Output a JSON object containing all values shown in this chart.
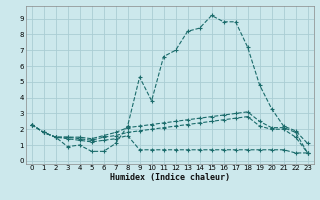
{
  "xlabel": "Humidex (Indice chaleur)",
  "ylabel": "",
  "bg_color": "#cce8ec",
  "grid_color": "#aacdd4",
  "line_color": "#1a6b6b",
  "xlim": [
    -0.5,
    23.5
  ],
  "ylim": [
    -0.2,
    9.8
  ],
  "xticks": [
    0,
    1,
    2,
    3,
    4,
    5,
    6,
    7,
    8,
    9,
    10,
    11,
    12,
    13,
    14,
    15,
    16,
    17,
    18,
    19,
    20,
    21,
    22,
    23
  ],
  "yticks": [
    0,
    1,
    2,
    3,
    4,
    5,
    6,
    7,
    8,
    9
  ],
  "series": [
    {
      "x": [
        0,
        1,
        2,
        3,
        4,
        5,
        6,
        7,
        8,
        9,
        10,
        11,
        12,
        13,
        14,
        15,
        16,
        17,
        18,
        19,
        20,
        21,
        22,
        23
      ],
      "y": [
        2.3,
        1.8,
        1.5,
        0.9,
        1.0,
        0.6,
        0.6,
        1.1,
        2.2,
        5.3,
        3.8,
        6.6,
        7.0,
        8.2,
        8.4,
        9.2,
        8.8,
        8.8,
        7.2,
        4.8,
        3.3,
        2.2,
        1.9,
        1.1
      ]
    },
    {
      "x": [
        0,
        1,
        2,
        3,
        4,
        5,
        6,
        7,
        8,
        9,
        10,
        11,
        12,
        13,
        14,
        15,
        16,
        17,
        18,
        19,
        20,
        21,
        22,
        23
      ],
      "y": [
        2.3,
        1.8,
        1.5,
        1.5,
        1.5,
        1.4,
        1.6,
        1.8,
        2.1,
        2.2,
        2.3,
        2.4,
        2.5,
        2.6,
        2.7,
        2.8,
        2.9,
        3.0,
        3.1,
        2.5,
        2.1,
        2.1,
        1.8,
        0.5
      ]
    },
    {
      "x": [
        0,
        1,
        2,
        3,
        4,
        5,
        6,
        7,
        8,
        9,
        10,
        11,
        12,
        13,
        14,
        15,
        16,
        17,
        18,
        19,
        20,
        21,
        22,
        23
      ],
      "y": [
        2.3,
        1.8,
        1.5,
        1.5,
        1.4,
        1.3,
        1.5,
        1.6,
        1.8,
        1.9,
        2.0,
        2.1,
        2.2,
        2.3,
        2.4,
        2.5,
        2.6,
        2.7,
        2.8,
        2.2,
        2.0,
        2.0,
        1.5,
        0.5
      ]
    },
    {
      "x": [
        0,
        1,
        2,
        3,
        4,
        5,
        6,
        7,
        8,
        9,
        10,
        11,
        12,
        13,
        14,
        15,
        16,
        17,
        18,
        19,
        20,
        21,
        22,
        23
      ],
      "y": [
        2.3,
        1.8,
        1.5,
        1.4,
        1.3,
        1.2,
        1.3,
        1.4,
        1.6,
        0.7,
        0.7,
        0.7,
        0.7,
        0.7,
        0.7,
        0.7,
        0.7,
        0.7,
        0.7,
        0.7,
        0.7,
        0.7,
        0.5,
        0.5
      ]
    }
  ]
}
